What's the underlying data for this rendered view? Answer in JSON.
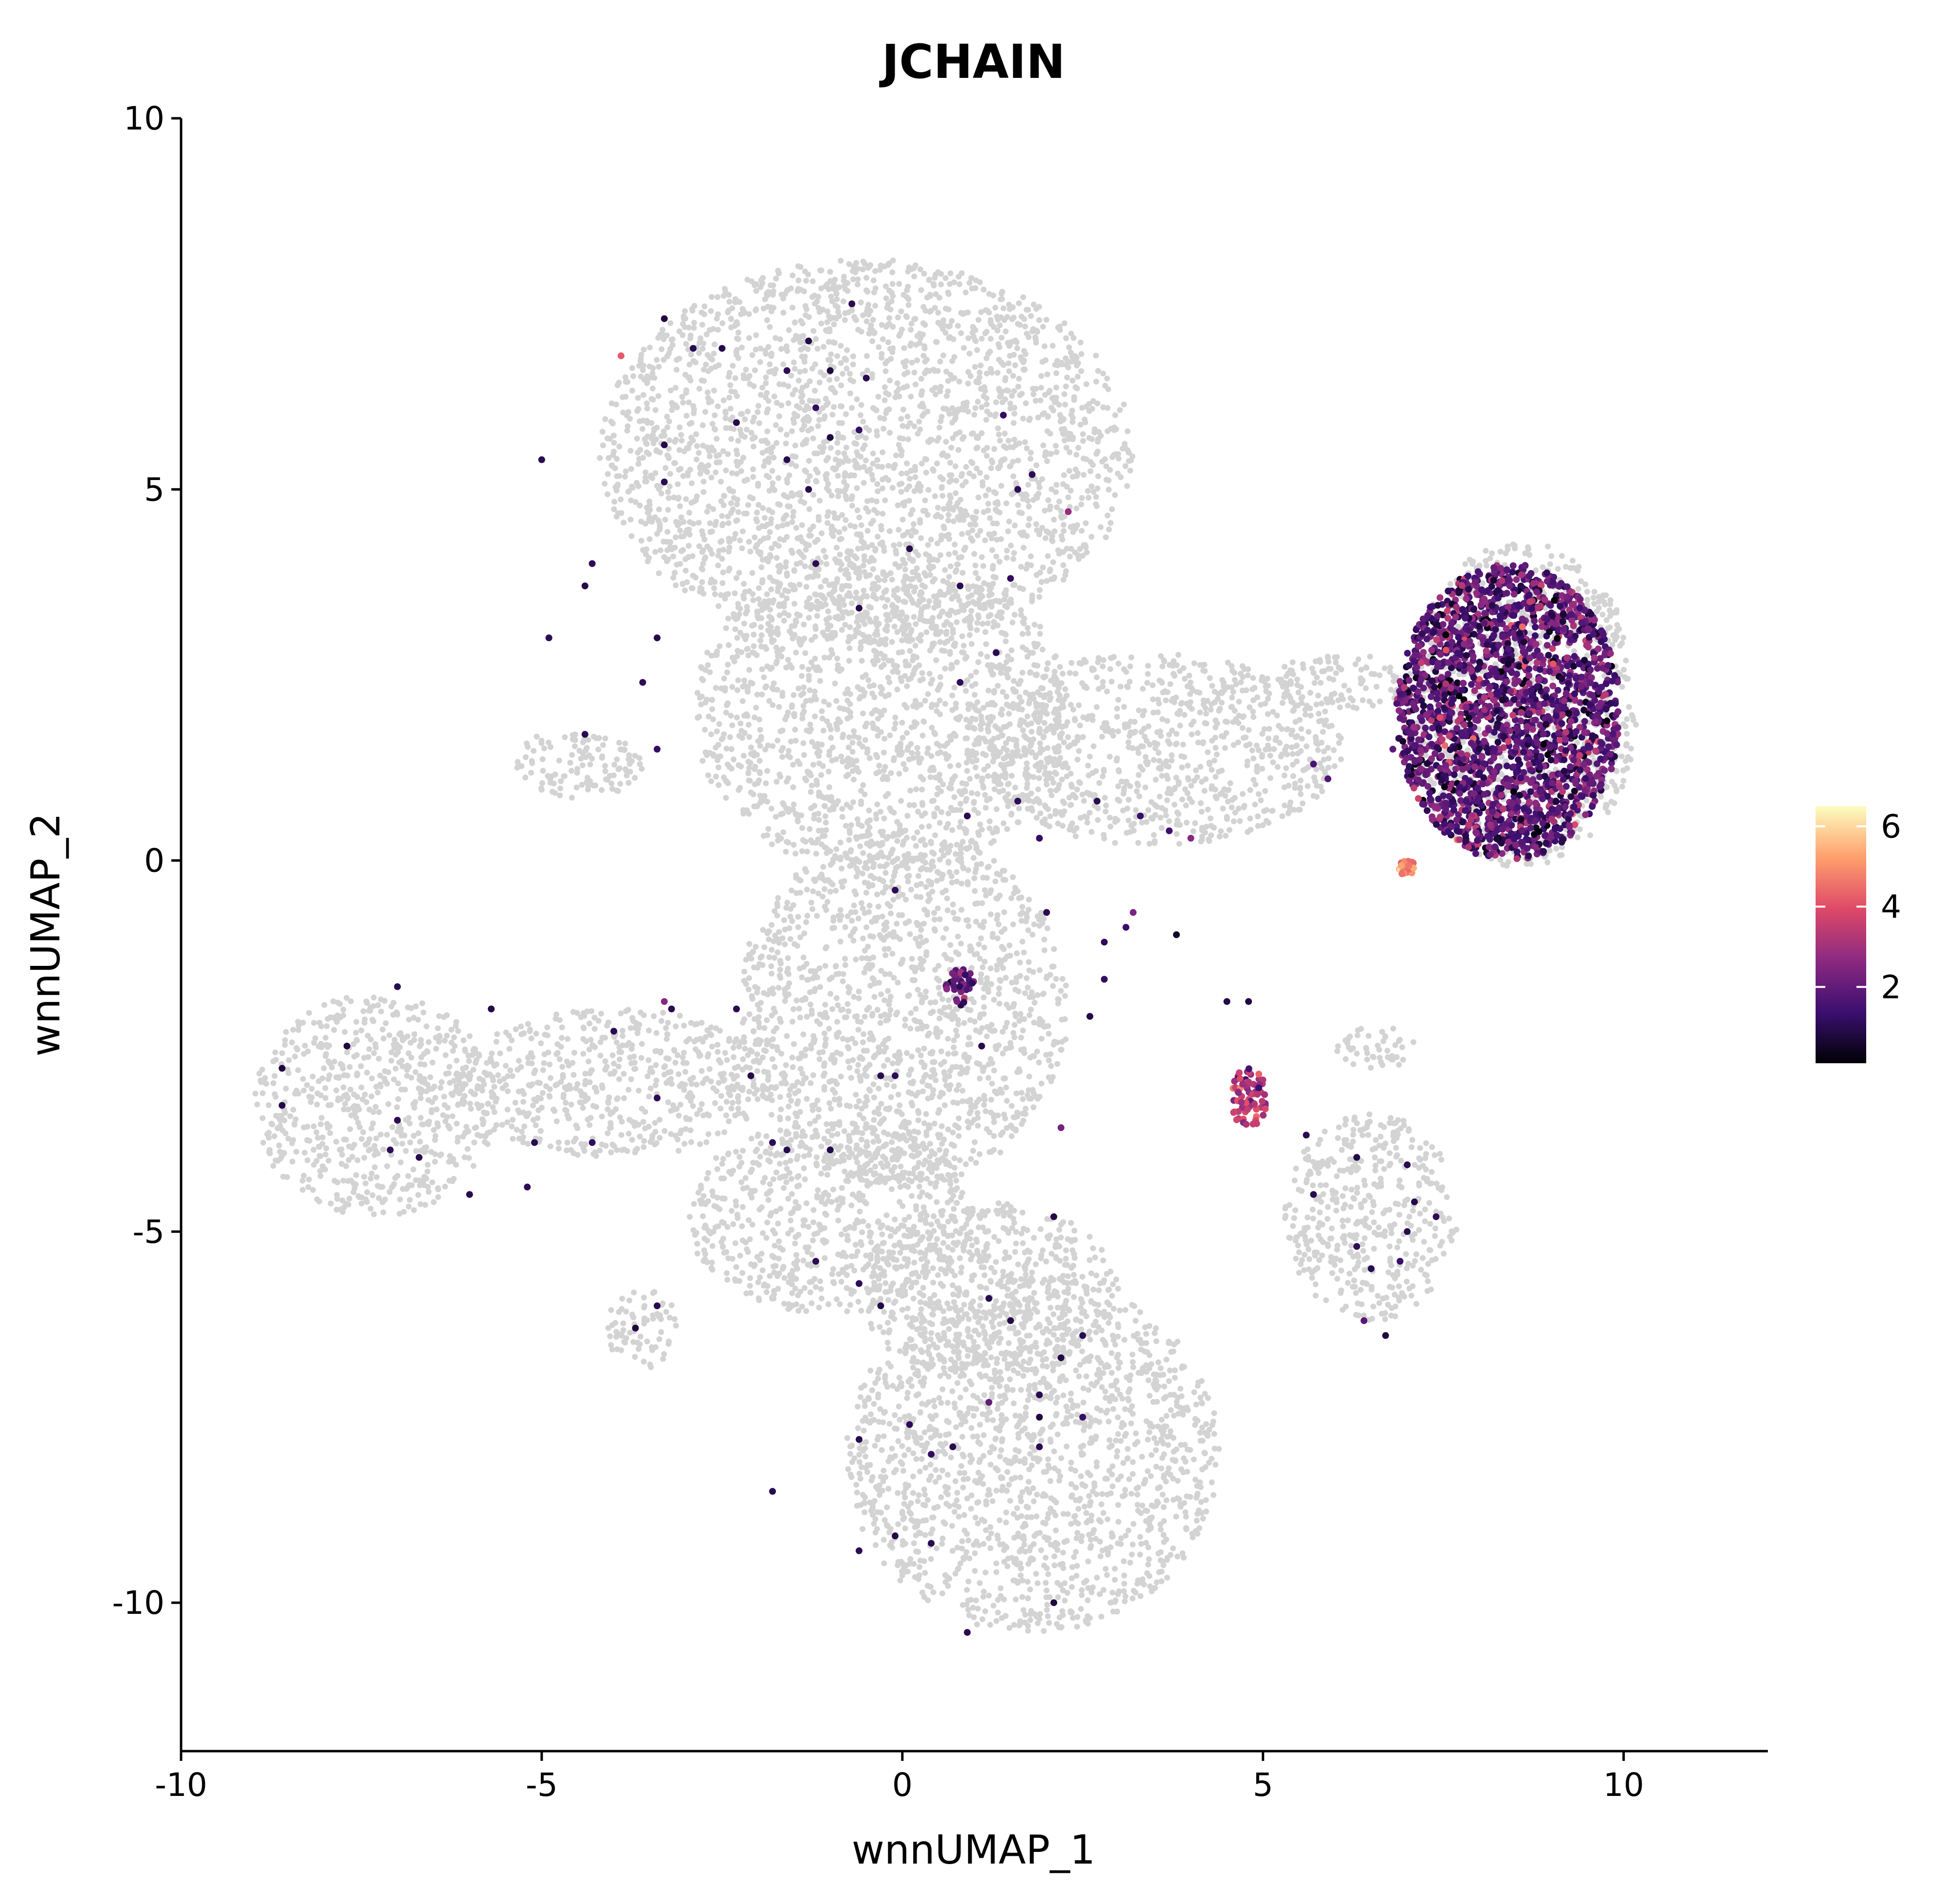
{
  "chart_data": {
    "type": "scatter",
    "title": "JCHAIN",
    "xlabel": "wnnUMAP_1",
    "ylabel": "wnnUMAP_2",
    "xlim": [
      -10,
      12
    ],
    "ylim": [
      -12,
      10
    ],
    "x_ticks": [
      -10,
      -5,
      0,
      5,
      10
    ],
    "x_tick_labels": [
      "-10",
      "-5",
      "0",
      "5",
      "10"
    ],
    "y_ticks": [
      10,
      5,
      0,
      -5,
      -10
    ],
    "y_tick_labels": [
      "10",
      "5",
      "0",
      "-5",
      "-10"
    ],
    "grid": false,
    "legend_position": "right",
    "colorbar": {
      "min": 0.1,
      "max": 6.5,
      "ticks": [
        6,
        4,
        2
      ],
      "tick_labels": [
        "6",
        "4",
        "2"
      ],
      "colors": [
        "#000004",
        "#3b0f70",
        "#8c2981",
        "#de4968",
        "#fe9f6d",
        "#fcfdbf"
      ]
    },
    "background_color": "#d3d3d3",
    "background_regions": [
      {
        "name": "top-lobe",
        "cx": -0.5,
        "cy": 5.5,
        "rx": 3.7,
        "ry": 2.6
      },
      {
        "name": "upper-trunk",
        "cx": -0.3,
        "cy": 2.0,
        "rx": 2.6,
        "ry": 2.2
      },
      {
        "name": "left-shoulder",
        "cx": -4.5,
        "cy": 1.3,
        "rx": 0.9,
        "ry": 0.5
      },
      {
        "name": "central-trunk",
        "cx": 0.0,
        "cy": -2.0,
        "rx": 2.3,
        "ry": 2.4
      },
      {
        "name": "left-arm",
        "cx": -4.0,
        "cy": -3.0,
        "rx": 2.2,
        "ry": 1.0
      },
      {
        "name": "left-blob",
        "cx": -7.3,
        "cy": -3.3,
        "rx": 1.7,
        "ry": 1.5
      },
      {
        "name": "lower-middle",
        "cx": -1.0,
        "cy": -4.8,
        "rx": 2.0,
        "ry": 1.3
      },
      {
        "name": "small-left-blob",
        "cx": -3.6,
        "cy": -6.3,
        "rx": 0.5,
        "ry": 0.55
      },
      {
        "name": "bottom-lobe",
        "cx": 1.8,
        "cy": -8.0,
        "rx": 2.6,
        "ry": 2.4
      },
      {
        "name": "bottom-upper",
        "cx": 1.2,
        "cy": -5.8,
        "rx": 1.8,
        "ry": 1.2
      },
      {
        "name": "bridge",
        "cx": 3.5,
        "cy": 1.5,
        "rx": 2.6,
        "ry": 1.3
      },
      {
        "name": "right-bridge",
        "cx": 6.0,
        "cy": 2.4,
        "rx": 1.0,
        "ry": 0.4
      },
      {
        "name": "plasma-cluster",
        "cx": 8.6,
        "cy": 2.1,
        "rx": 1.6,
        "ry": 2.2
      },
      {
        "name": "right-small-cluster",
        "cx": 6.5,
        "cy": -4.8,
        "rx": 1.2,
        "ry": 1.4
      },
      {
        "name": "connector-strand",
        "cx": 6.6,
        "cy": -2.5,
        "rx": 0.6,
        "ry": 0.3
      }
    ],
    "expression_clusters": [
      {
        "name": "plasma-cells",
        "cx": 8.4,
        "cy": 2.0,
        "rx": 1.55,
        "ry": 2.0,
        "mean": 1.9,
        "sd": 0.8
      },
      {
        "name": "cluster-near-7-0",
        "cx": 7.0,
        "cy": -0.1,
        "rx": 0.12,
        "ry": 0.1,
        "mean": 4.8,
        "sd": 0.4
      },
      {
        "name": "cluster-near-4.8-neg3.2",
        "cx": 4.8,
        "cy": -3.2,
        "rx": 0.25,
        "ry": 0.4,
        "mean": 3.3,
        "sd": 0.7
      },
      {
        "name": "cluster-near-0.8-neg1.7",
        "cx": 0.8,
        "cy": -1.7,
        "rx": 0.2,
        "ry": 0.25,
        "mean": 2.0,
        "sd": 0.6
      }
    ],
    "scattered_points": [
      {
        "x": -3.9,
        "y": 6.8,
        "value": 4.2
      },
      {
        "x": -0.7,
        "y": 7.5,
        "value": 1.0
      },
      {
        "x": -1.3,
        "y": 7.0,
        "value": 0.9
      },
      {
        "x": -2.9,
        "y": 6.9,
        "value": 1.0
      },
      {
        "x": -3.3,
        "y": 7.3,
        "value": 0.8
      },
      {
        "x": -2.5,
        "y": 6.9,
        "value": 0.9
      },
      {
        "x": -1.6,
        "y": 6.6,
        "value": 1.1
      },
      {
        "x": -1.0,
        "y": 6.6,
        "value": 0.8
      },
      {
        "x": -0.5,
        "y": 6.5,
        "value": 1.0
      },
      {
        "x": -1.2,
        "y": 6.1,
        "value": 1.2
      },
      {
        "x": -2.3,
        "y": 5.9,
        "value": 0.9
      },
      {
        "x": -1.0,
        "y": 5.7,
        "value": 0.8
      },
      {
        "x": 1.4,
        "y": 6.0,
        "value": 1.2
      },
      {
        "x": -3.3,
        "y": 5.6,
        "value": 0.9
      },
      {
        "x": -0.6,
        "y": 5.8,
        "value": 1.3
      },
      {
        "x": -1.6,
        "y": 5.4,
        "value": 1.0
      },
      {
        "x": -3.3,
        "y": 5.1,
        "value": 1.0
      },
      {
        "x": 1.6,
        "y": 5.0,
        "value": 1.1
      },
      {
        "x": -5.0,
        "y": 5.4,
        "value": 1.0
      },
      {
        "x": 1.8,
        "y": 5.2,
        "value": 1.1
      },
      {
        "x": -1.3,
        "y": 5.0,
        "value": 1.0
      },
      {
        "x": 2.3,
        "y": 4.7,
        "value": 2.8
      },
      {
        "x": 0.1,
        "y": 4.2,
        "value": 1.0
      },
      {
        "x": -1.2,
        "y": 4.0,
        "value": 1.0
      },
      {
        "x": -4.3,
        "y": 4.0,
        "value": 1.1
      },
      {
        "x": -4.4,
        "y": 3.7,
        "value": 0.9
      },
      {
        "x": 0.8,
        "y": 3.7,
        "value": 1.0
      },
      {
        "x": 1.5,
        "y": 3.8,
        "value": 1.2
      },
      {
        "x": -0.6,
        "y": 3.4,
        "value": 0.9
      },
      {
        "x": -4.9,
        "y": 3.0,
        "value": 1.1
      },
      {
        "x": -3.4,
        "y": 3.0,
        "value": 0.9
      },
      {
        "x": 1.3,
        "y": 2.8,
        "value": 1.0
      },
      {
        "x": 0.8,
        "y": 2.4,
        "value": 1.1
      },
      {
        "x": -3.6,
        "y": 2.4,
        "value": 1.1
      },
      {
        "x": -4.4,
        "y": 1.7,
        "value": 1.0
      },
      {
        "x": -3.4,
        "y": 1.5,
        "value": 1.2
      },
      {
        "x": 0.9,
        "y": 0.6,
        "value": 1.0
      },
      {
        "x": 1.6,
        "y": 0.8,
        "value": 1.1
      },
      {
        "x": 2.7,
        "y": 0.8,
        "value": 1.0
      },
      {
        "x": 3.3,
        "y": 0.6,
        "value": 1.3
      },
      {
        "x": 1.9,
        "y": 0.3,
        "value": 1.2
      },
      {
        "x": 3.7,
        "y": 0.4,
        "value": 1.4
      },
      {
        "x": 4.0,
        "y": 0.3,
        "value": 2.6
      },
      {
        "x": 2.0,
        "y": -0.7,
        "value": 1.0
      },
      {
        "x": -0.1,
        "y": -0.4,
        "value": 1.1
      },
      {
        "x": 2.8,
        "y": -1.1,
        "value": 1.1
      },
      {
        "x": 2.8,
        "y": -1.6,
        "value": 1.2
      },
      {
        "x": 3.1,
        "y": -0.9,
        "value": 1.3
      },
      {
        "x": 3.2,
        "y": -0.7,
        "value": 2.4
      },
      {
        "x": 3.8,
        "y": -1.0,
        "value": 0.5
      },
      {
        "x": 5.7,
        "y": 1.3,
        "value": 1.6
      },
      {
        "x": 5.9,
        "y": 1.1,
        "value": 1.7
      },
      {
        "x": 6.8,
        "y": 1.5,
        "value": 1.9
      },
      {
        "x": 4.8,
        "y": -1.9,
        "value": 0.8
      },
      {
        "x": 4.5,
        "y": -1.9,
        "value": 0.9
      },
      {
        "x": 2.6,
        "y": -2.1,
        "value": 0.9
      },
      {
        "x": 1.1,
        "y": -2.5,
        "value": 1.0
      },
      {
        "x": 2.2,
        "y": -3.6,
        "value": 2.3
      },
      {
        "x": 2.1,
        "y": -4.8,
        "value": 0.9
      },
      {
        "x": 5.6,
        "y": -3.7,
        "value": 1.0
      },
      {
        "x": 5.7,
        "y": -4.5,
        "value": 1.0
      },
      {
        "x": 6.3,
        "y": -4.0,
        "value": 0.9
      },
      {
        "x": 7.0,
        "y": -4.1,
        "value": 1.0
      },
      {
        "x": 7.1,
        "y": -4.6,
        "value": 0.9
      },
      {
        "x": 7.4,
        "y": -4.8,
        "value": 1.1
      },
      {
        "x": 7.0,
        "y": -5.0,
        "value": 1.0
      },
      {
        "x": 6.5,
        "y": -5.5,
        "value": 1.0
      },
      {
        "x": 6.3,
        "y": -5.2,
        "value": 1.1
      },
      {
        "x": 6.9,
        "y": -5.4,
        "value": 1.3
      },
      {
        "x": 6.4,
        "y": -6.2,
        "value": 1.8
      },
      {
        "x": 6.7,
        "y": -6.4,
        "value": 0.8
      },
      {
        "x": -7.7,
        "y": -2.5,
        "value": 0.8
      },
      {
        "x": -7.0,
        "y": -1.7,
        "value": 1.0
      },
      {
        "x": -8.6,
        "y": -2.8,
        "value": 0.8
      },
      {
        "x": -8.6,
        "y": -3.3,
        "value": 0.9
      },
      {
        "x": -7.0,
        "y": -3.5,
        "value": 1.0
      },
      {
        "x": -7.1,
        "y": -3.9,
        "value": 1.1
      },
      {
        "x": -6.7,
        "y": -4.0,
        "value": 1.0
      },
      {
        "x": -6.0,
        "y": -4.5,
        "value": 1.0
      },
      {
        "x": -5.2,
        "y": -4.4,
        "value": 1.1
      },
      {
        "x": -5.1,
        "y": -3.8,
        "value": 1.0
      },
      {
        "x": -5.7,
        "y": -2.0,
        "value": 0.9
      },
      {
        "x": -4.0,
        "y": -2.3,
        "value": 1.0
      },
      {
        "x": -4.3,
        "y": -3.8,
        "value": 1.2
      },
      {
        "x": -3.2,
        "y": -2.0,
        "value": 1.0
      },
      {
        "x": -3.3,
        "y": -1.9,
        "value": 2.6
      },
      {
        "x": -3.4,
        "y": -3.2,
        "value": 1.1
      },
      {
        "x": -2.3,
        "y": -2.0,
        "value": 1.0
      },
      {
        "x": -2.1,
        "y": -2.9,
        "value": 0.9
      },
      {
        "x": -1.8,
        "y": -3.8,
        "value": 1.1
      },
      {
        "x": -1.6,
        "y": -3.9,
        "value": 1.0
      },
      {
        "x": -1.0,
        "y": -3.9,
        "value": 0.9
      },
      {
        "x": -0.3,
        "y": -2.9,
        "value": 1.0
      },
      {
        "x": -0.1,
        "y": -2.9,
        "value": 1.1
      },
      {
        "x": -3.4,
        "y": -6.0,
        "value": 1.0
      },
      {
        "x": -3.7,
        "y": -6.3,
        "value": 0.8
      },
      {
        "x": -1.2,
        "y": -5.4,
        "value": 1.0
      },
      {
        "x": -0.6,
        "y": -5.7,
        "value": 1.1
      },
      {
        "x": -0.3,
        "y": -6.0,
        "value": 0.9
      },
      {
        "x": 1.2,
        "y": -5.9,
        "value": 1.0
      },
      {
        "x": 1.5,
        "y": -6.2,
        "value": 0.9
      },
      {
        "x": 2.5,
        "y": -6.4,
        "value": 1.0
      },
      {
        "x": 2.2,
        "y": -6.7,
        "value": 0.9
      },
      {
        "x": 1.9,
        "y": -7.2,
        "value": 1.0
      },
      {
        "x": 1.9,
        "y": -7.5,
        "value": 0.8
      },
      {
        "x": 1.9,
        "y": -7.9,
        "value": 1.0
      },
      {
        "x": 1.2,
        "y": -7.3,
        "value": 2.0
      },
      {
        "x": 0.1,
        "y": -7.6,
        "value": 1.1
      },
      {
        "x": -0.6,
        "y": -7.8,
        "value": 1.0
      },
      {
        "x": 0.4,
        "y": -8.0,
        "value": 1.2
      },
      {
        "x": -1.8,
        "y": -8.5,
        "value": 1.0
      },
      {
        "x": 0.7,
        "y": -7.9,
        "value": 1.0
      },
      {
        "x": -0.1,
        "y": -9.1,
        "value": 0.9
      },
      {
        "x": 0.4,
        "y": -9.2,
        "value": 1.0
      },
      {
        "x": -0.6,
        "y": -9.3,
        "value": 1.1
      },
      {
        "x": 2.1,
        "y": -10.0,
        "value": 0.8
      },
      {
        "x": 0.9,
        "y": -10.4,
        "value": 1.0
      },
      {
        "x": 2.5,
        "y": -7.5,
        "value": 1.3
      }
    ]
  }
}
